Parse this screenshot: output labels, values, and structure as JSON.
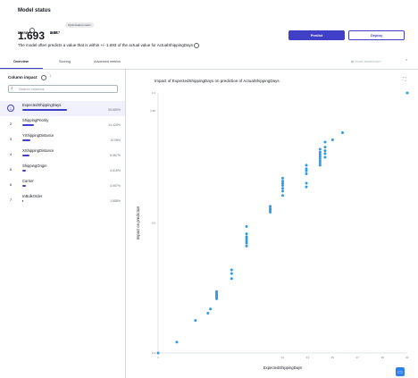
{
  "header": {
    "title": "Model status",
    "rmse_label": "RMSE",
    "rmse_value": "1.693",
    "mse_label": "MSE",
    "mse_value": "2.867",
    "badge": "Optimization metric",
    "summary": "The model often predicts a value that is within +/- 1.693 of the actual value for ActualShippingDays",
    "predict_label": "Predict",
    "deploy_label": "Deploy"
  },
  "tabs": [
    {
      "label": "Overview",
      "active": true
    },
    {
      "label": "Scoring",
      "active": false
    },
    {
      "label": "Advanced metrics",
      "active": false
    }
  ],
  "leaderboard_label": "Model leaderboard",
  "left_panel": {
    "title": "Column impact",
    "search_placeholder": "Search columns",
    "columns": [
      {
        "rank": "1",
        "name": "ExpectedShippingDays",
        "pct": "55.680%",
        "value": 55.68,
        "selected": true
      },
      {
        "rank": "2",
        "name": "ShippingPriority",
        "pct": "14.429%",
        "value": 14.429,
        "selected": false
      },
      {
        "rank": "3",
        "name": "YShippingDistance",
        "pct": "10.08%",
        "value": 10.08,
        "selected": false
      },
      {
        "rank": "4",
        "name": "XShippingDistance",
        "pct": "8.967%",
        "value": 8.967,
        "selected": false
      },
      {
        "rank": "5",
        "name": "ShippingOrigin",
        "pct": "4.515%",
        "value": 4.515,
        "selected": false
      },
      {
        "rank": "6",
        "name": "Carrier",
        "pct": "4.057%",
        "value": 4.057,
        "selected": false
      },
      {
        "rank": "7",
        "name": "InBulkOrder",
        "pct": "1.588%",
        "value": 1.588,
        "selected": false
      }
    ]
  },
  "chart": {
    "title": "Impact of ExpectedShippingDays on prediction of ActualShippingDays"
  },
  "chart_data": {
    "type": "scatter",
    "title": "Impact of ExpectedShippingDays on prediction of ActualShippingDays",
    "xlabel": "ExpectedShippingDays",
    "ylabel": "Impact on prediction",
    "xlim": [
      1,
      21
    ],
    "ylim": [
      -2.3,
      1.3
    ],
    "xticks": [
      "1",
      "11",
      "13",
      "15",
      "17",
      "19",
      "21"
    ],
    "yticks": [
      "-2.3",
      "-0.5",
      "1.05",
      "1.3"
    ],
    "grid": false,
    "points": [
      [
        1.0,
        -2.3
      ],
      [
        2.5,
        -2.15
      ],
      [
        4.0,
        -1.85
      ],
      [
        5.0,
        -1.75
      ],
      [
        5.2,
        -1.69
      ],
      [
        5.7,
        -1.55
      ],
      [
        5.7,
        -1.53
      ],
      [
        5.7,
        -1.51
      ],
      [
        5.7,
        -1.49
      ],
      [
        5.7,
        -1.47
      ],
      [
        5.7,
        -1.45
      ],
      [
        6.9,
        -1.27
      ],
      [
        6.9,
        -1.2
      ],
      [
        6.9,
        -1.15
      ],
      [
        8.1,
        -0.82
      ],
      [
        8.1,
        -0.78
      ],
      [
        8.1,
        -0.75
      ],
      [
        8.1,
        -0.72
      ],
      [
        8.1,
        -0.69
      ],
      [
        8.1,
        -0.65
      ],
      [
        8.1,
        -0.55
      ],
      [
        10.0,
        -0.35
      ],
      [
        10.0,
        -0.32
      ],
      [
        10.0,
        -0.3
      ],
      [
        10.0,
        -0.27
      ],
      [
        11.0,
        0.12
      ],
      [
        11.0,
        0.08
      ],
      [
        11.0,
        0.05
      ],
      [
        11.0,
        0.02
      ],
      [
        11.0,
        -0.02
      ],
      [
        11.0,
        -0.06
      ],
      [
        11.0,
        -0.12
      ],
      [
        12.9,
        0.3
      ],
      [
        12.9,
        0.25
      ],
      [
        12.9,
        0.22
      ],
      [
        12.9,
        0.18
      ],
      [
        12.9,
        0.05
      ],
      [
        12.9,
        0.0
      ],
      [
        14.0,
        0.52
      ],
      [
        14.0,
        0.48
      ],
      [
        14.0,
        0.45
      ],
      [
        14.0,
        0.42
      ],
      [
        14.0,
        0.39
      ],
      [
        14.0,
        0.36
      ],
      [
        14.0,
        0.33
      ],
      [
        14.0,
        0.3
      ],
      [
        14.4,
        0.62
      ],
      [
        14.4,
        0.55
      ],
      [
        14.4,
        0.5
      ],
      [
        14.4,
        0.46
      ],
      [
        14.4,
        0.41
      ],
      [
        15.0,
        0.65
      ],
      [
        15.8,
        0.75
      ],
      [
        21.0,
        1.3
      ]
    ]
  },
  "icons": {
    "info": "info-icon",
    "sort": "sort-arrow-icon",
    "search": "search-icon",
    "expand": "expand-icon",
    "collapse": "collapse-chevrons-icon",
    "chat": "chat-icon"
  },
  "colors": {
    "accent": "#3f3fc8",
    "point": "#2f9be4",
    "selected_row": "#f1f1fd"
  }
}
